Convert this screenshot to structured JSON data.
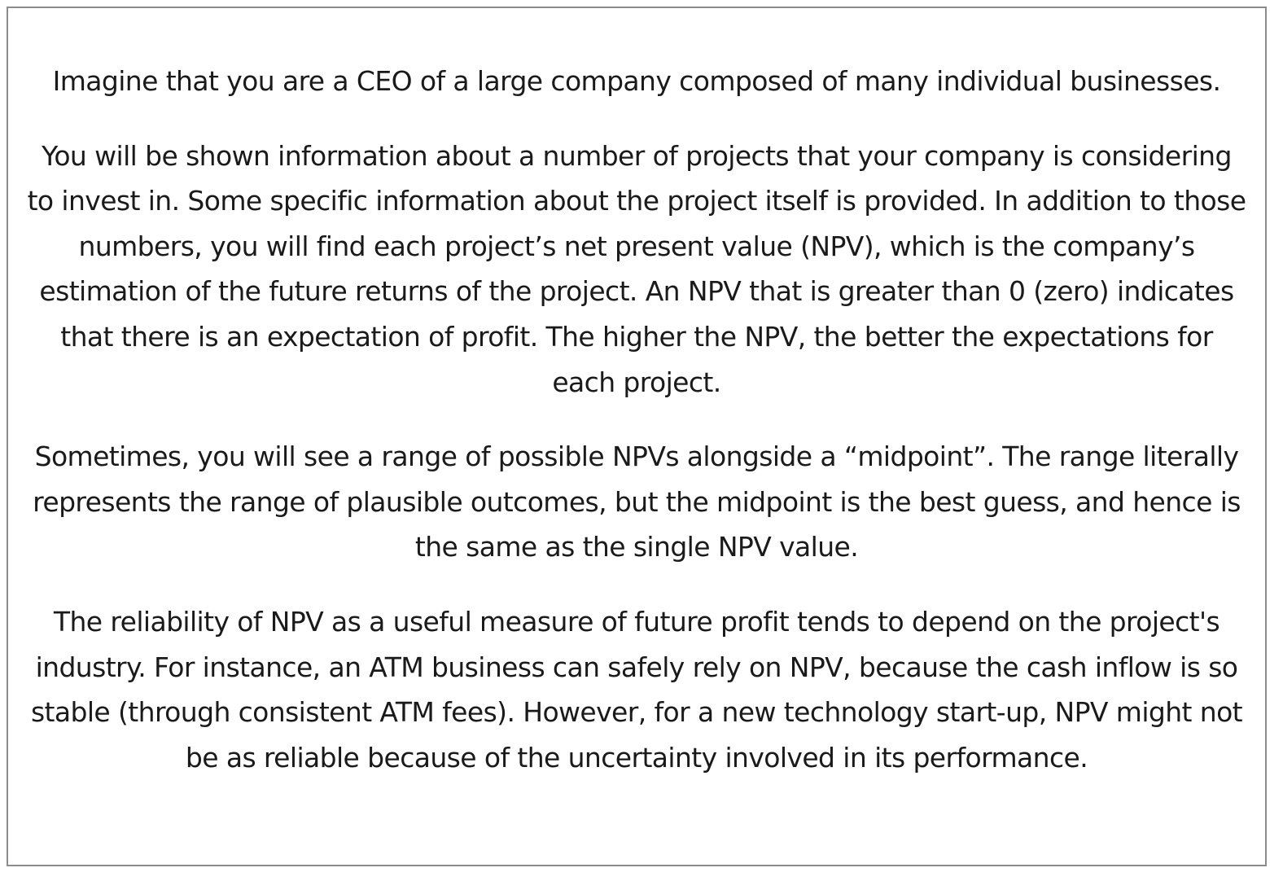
{
  "instructions": {
    "paragraphs": [
      "Imagine that you are a CEO of a large company composed of many individual businesses.",
      "You will be shown information about a number of projects that your company is considering to invest in. Some specific information about the project itself is provided. In addition to those numbers, you will find each project’s net present value (NPV), which is the company’s estimation of the future returns of the project. An NPV that is greater than 0 (zero) indicates that there is an expectation of profit. The higher the NPV, the better the expectations for each project.",
      "Sometimes, you will see a range of possible NPVs alongside a “midpoint”. The range literally represents the range of plausible outcomes, but the midpoint is the best guess, and hence is the same as the single NPV value.",
      "The reliability of NPV as a useful measure of future profit tends to depend on the project's industry. For instance, an ATM business can safely rely on NPV, because the cash inflow is so stable (through consistent ATM fees). However, for a new technology start-up, NPV might not be as reliable because of the uncertainty involved in its performance."
    ]
  }
}
